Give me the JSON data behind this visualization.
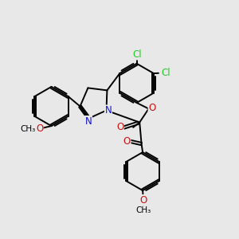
{
  "bg_color": "#e8e8e8",
  "bond_color": "#000000",
  "bond_width": 1.4,
  "atom_colors": {
    "N": "#1010cc",
    "O": "#cc1010",
    "Cl": "#22cc22"
  },
  "dbo": 0.055
}
